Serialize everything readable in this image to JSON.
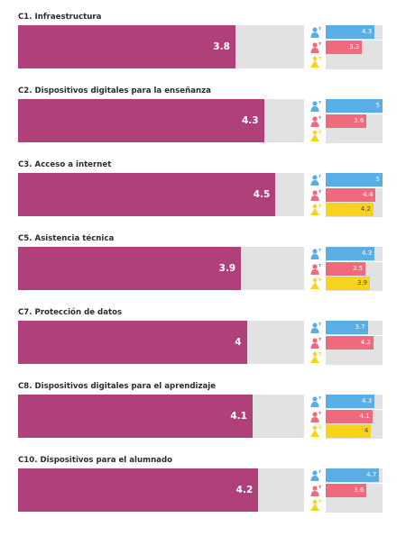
{
  "chart_data": {
    "type": "bar",
    "max": 5,
    "colors": {
      "main": "#b0407a",
      "track": "#e2e2e2",
      "students": "#5aaee6",
      "teachers": "#f06a7e",
      "leaders": "#f8d31c"
    },
    "group_icons": [
      "student-icon",
      "teacher-icon",
      "school-leader-icon"
    ],
    "categories": [
      {
        "title": "C1. Infraestructura",
        "value": 3.8,
        "groups": [
          {
            "key": "students",
            "value": 4.3,
            "label": "4.3"
          },
          {
            "key": "teachers",
            "value": 3.2,
            "label": "3.2"
          },
          {
            "key": "leaders",
            "value": null,
            "label": ""
          }
        ]
      },
      {
        "title": "C2. Dispositivos digitales para la enseñanza",
        "value": 4.3,
        "groups": [
          {
            "key": "students",
            "value": 5,
            "label": "5"
          },
          {
            "key": "teachers",
            "value": 3.6,
            "label": "3.6"
          },
          {
            "key": "leaders",
            "value": null,
            "label": ""
          }
        ]
      },
      {
        "title": "C3. Acceso a internet",
        "value": 4.5,
        "groups": [
          {
            "key": "students",
            "value": 5,
            "label": "5"
          },
          {
            "key": "teachers",
            "value": 4.4,
            "label": "4.4"
          },
          {
            "key": "leaders",
            "value": 4.2,
            "label": "4.2"
          }
        ]
      },
      {
        "title": "C5. Asistencia técnica",
        "value": 3.9,
        "groups": [
          {
            "key": "students",
            "value": 4.3,
            "label": "4.3"
          },
          {
            "key": "teachers",
            "value": 3.5,
            "label": "3.5"
          },
          {
            "key": "leaders",
            "value": 3.9,
            "label": "3.9"
          }
        ]
      },
      {
        "title": "C7. Protección de datos",
        "value": 4,
        "groups": [
          {
            "key": "students",
            "value": 3.7,
            "label": "3.7"
          },
          {
            "key": "teachers",
            "value": 4.2,
            "label": "4.2"
          },
          {
            "key": "leaders",
            "value": null,
            "label": ""
          }
        ]
      },
      {
        "title": "C8. Dispositivos digitales para el aprendizaje",
        "value": 4.1,
        "groups": [
          {
            "key": "students",
            "value": 4.3,
            "label": "4.3"
          },
          {
            "key": "teachers",
            "value": 4.1,
            "label": "4.1"
          },
          {
            "key": "leaders",
            "value": 4,
            "label": "4"
          }
        ]
      },
      {
        "title": "C10. Dispositivos para el alumnado",
        "value": 4.2,
        "groups": [
          {
            "key": "students",
            "value": 4.7,
            "label": "4.7"
          },
          {
            "key": "teachers",
            "value": 3.6,
            "label": "3.6"
          },
          {
            "key": "leaders",
            "value": null,
            "label": ""
          }
        ]
      }
    ]
  }
}
